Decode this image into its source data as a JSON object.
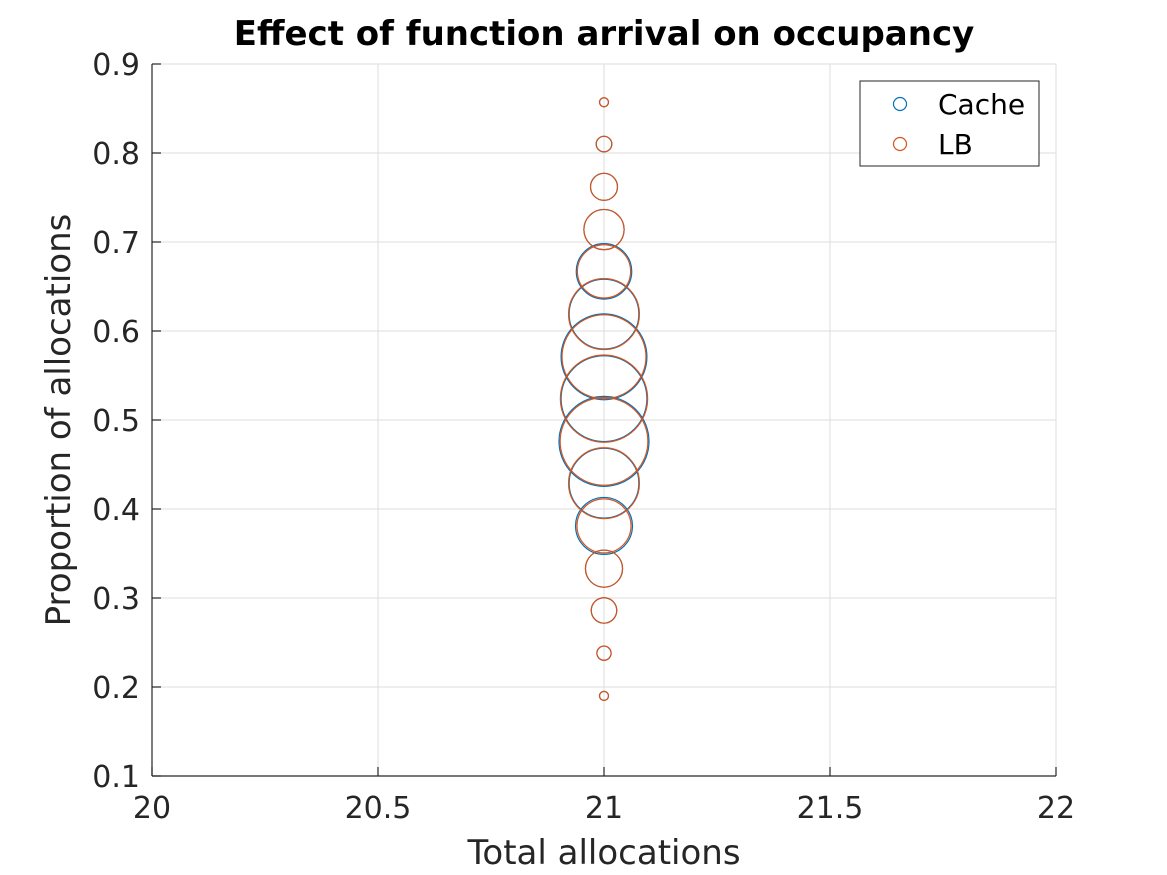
{
  "chart_data": {
    "type": "scatter",
    "title": "Effect of function arrival on occupancy",
    "xlabel": "Total allocations",
    "ylabel": "Proportion of allocations",
    "xlim": [
      20,
      22
    ],
    "ylim": [
      0.1,
      0.9
    ],
    "xticks": [
      "20",
      "20.5",
      "21",
      "21.5",
      "22"
    ],
    "yticks": [
      "0.1",
      "0.2",
      "0.3",
      "0.4",
      "0.5",
      "0.6",
      "0.7",
      "0.8",
      "0.9"
    ],
    "grid": true,
    "legend_position": "top-right",
    "marker": "open-circle",
    "series": [
      {
        "name": "Cache",
        "color": "#0072BD",
        "points": [
          {
            "x": 21,
            "y": 0.857,
            "size": 1
          },
          {
            "x": 21,
            "y": 0.81,
            "size": 3
          },
          {
            "x": 21,
            "y": 0.762,
            "size": 9
          },
          {
            "x": 21,
            "y": 0.714,
            "size": 20
          },
          {
            "x": 21,
            "y": 0.667,
            "size": 38
          },
          {
            "x": 21,
            "y": 0.619,
            "size": 60
          },
          {
            "x": 21,
            "y": 0.571,
            "size": 91
          },
          {
            "x": 21,
            "y": 0.524,
            "size": 91
          },
          {
            "x": 21,
            "y": 0.476,
            "size": 100
          },
          {
            "x": 21,
            "y": 0.429,
            "size": 60
          },
          {
            "x": 21,
            "y": 0.381,
            "size": 40
          },
          {
            "x": 21,
            "y": 0.333,
            "size": 17
          },
          {
            "x": 21,
            "y": 0.286,
            "size": 8
          },
          {
            "x": 21,
            "y": 0.238,
            "size": 2.5
          },
          {
            "x": 21,
            "y": 0.19,
            "size": 1
          }
        ]
      },
      {
        "name": "LB",
        "color": "#D95319",
        "points": [
          {
            "x": 21,
            "y": 0.857,
            "size": 1
          },
          {
            "x": 21,
            "y": 0.81,
            "size": 3
          },
          {
            "x": 21,
            "y": 0.762,
            "size": 9
          },
          {
            "x": 21,
            "y": 0.714,
            "size": 20
          },
          {
            "x": 21,
            "y": 0.667,
            "size": 35
          },
          {
            "x": 21,
            "y": 0.619,
            "size": 62
          },
          {
            "x": 21,
            "y": 0.571,
            "size": 87
          },
          {
            "x": 21,
            "y": 0.524,
            "size": 94
          },
          {
            "x": 21,
            "y": 0.476,
            "size": 95
          },
          {
            "x": 21,
            "y": 0.429,
            "size": 62
          },
          {
            "x": 21,
            "y": 0.381,
            "size": 36
          },
          {
            "x": 21,
            "y": 0.333,
            "size": 17
          },
          {
            "x": 21,
            "y": 0.286,
            "size": 8
          },
          {
            "x": 21,
            "y": 0.238,
            "size": 2.5
          },
          {
            "x": 21,
            "y": 0.19,
            "size": 1
          }
        ]
      }
    ],
    "colors": {
      "axis": "#262626",
      "grid": "#dedede",
      "background": "#ffffff"
    }
  }
}
